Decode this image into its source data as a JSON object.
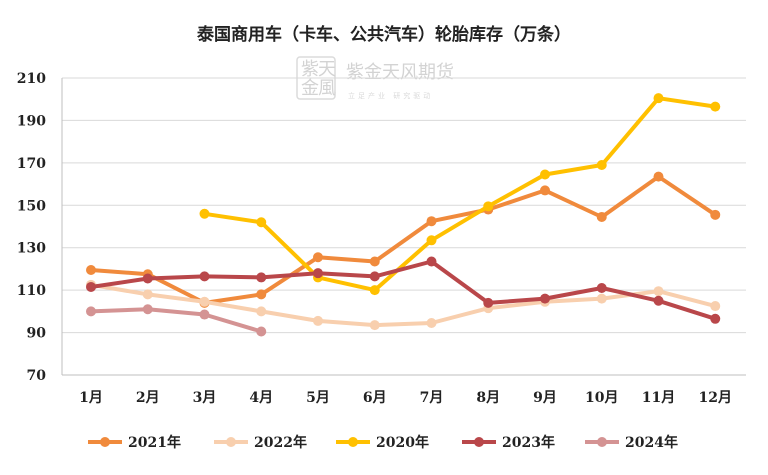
{
  "chart_data": {
    "type": "line",
    "title": "泰国商用车（卡车、公共汽车）轮胎库存（万条）",
    "categories": [
      "1月",
      "2月",
      "3月",
      "4月",
      "5月",
      "6月",
      "7月",
      "8月",
      "9月",
      "10月",
      "11月",
      "12月"
    ],
    "ylim": [
      70,
      210
    ],
    "yticks": [
      70,
      90,
      110,
      130,
      150,
      170,
      190,
      210
    ],
    "grid": true,
    "legend_position": "bottom",
    "series": [
      {
        "name": "2021年",
        "color": "#f08a3c",
        "values": [
          119.5,
          117.5,
          104,
          108,
          125.5,
          123.5,
          142.5,
          148,
          157,
          144.5,
          163.5,
          145.5
        ]
      },
      {
        "name": "2022年",
        "color": "#f8cfae",
        "values": [
          112.5,
          108,
          104.5,
          100,
          95.5,
          93.5,
          94.5,
          101.5,
          104.5,
          106,
          109.5,
          102.5
        ]
      },
      {
        "name": "2020年",
        "color": "#ffc000",
        "values": [
          null,
          null,
          146,
          142,
          116,
          110,
          133.5,
          149.5,
          164.5,
          169,
          200.5,
          196.5
        ]
      },
      {
        "name": "2023年",
        "color": "#b9474a",
        "values": [
          111.5,
          115.5,
          116.5,
          116,
          118,
          116.5,
          123.5,
          104,
          106,
          111,
          105,
          96.5
        ]
      },
      {
        "name": "2024年",
        "color": "#d49393",
        "values": [
          100,
          101,
          98.5,
          90.5,
          null,
          null,
          null,
          null,
          null,
          null,
          null,
          null
        ]
      }
    ]
  },
  "watermark": {
    "text": "紫金天风期货",
    "sub": "立足产业 研究驱动",
    "logo_chars": [
      "紫",
      "天",
      "金",
      "風"
    ]
  }
}
